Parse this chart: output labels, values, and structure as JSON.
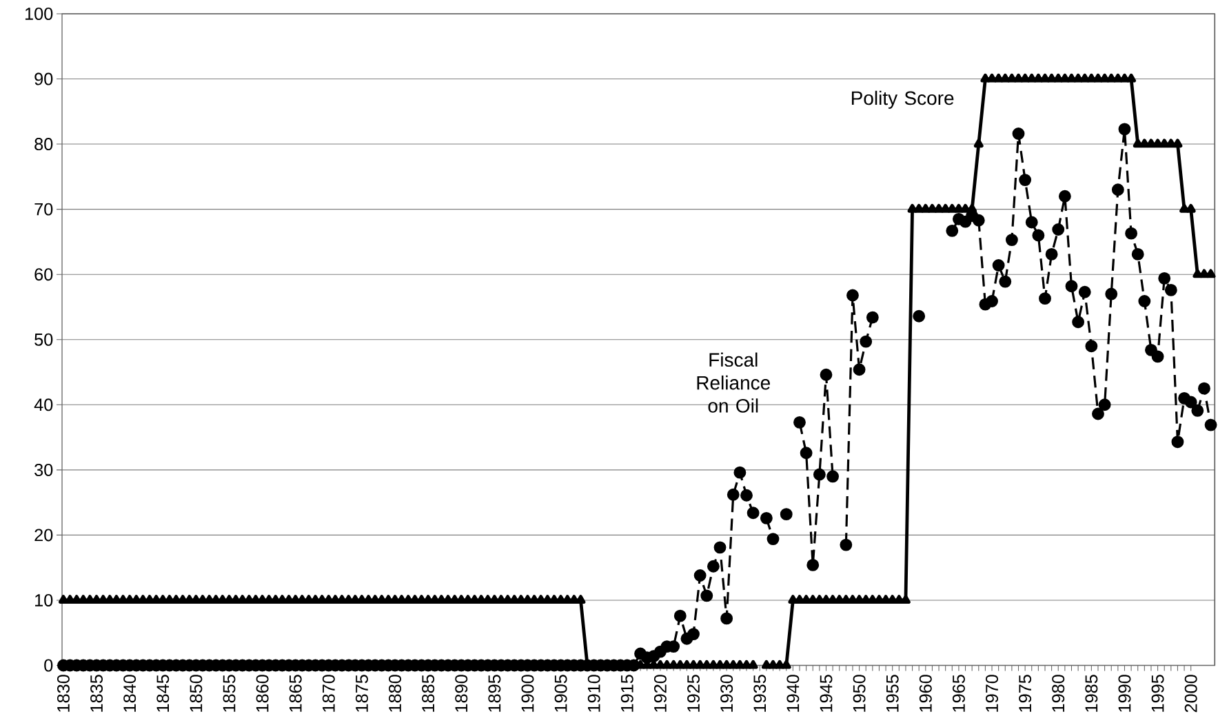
{
  "chart_data": {
    "type": "line",
    "x": [
      1830,
      1831,
      1832,
      1833,
      1834,
      1835,
      1836,
      1837,
      1838,
      1839,
      1840,
      1841,
      1842,
      1843,
      1844,
      1845,
      1846,
      1847,
      1848,
      1849,
      1850,
      1851,
      1852,
      1853,
      1854,
      1855,
      1856,
      1857,
      1858,
      1859,
      1860,
      1861,
      1862,
      1863,
      1864,
      1865,
      1866,
      1867,
      1868,
      1869,
      1870,
      1871,
      1872,
      1873,
      1874,
      1875,
      1876,
      1877,
      1878,
      1879,
      1880,
      1881,
      1882,
      1883,
      1884,
      1885,
      1886,
      1887,
      1888,
      1889,
      1890,
      1891,
      1892,
      1893,
      1894,
      1895,
      1896,
      1897,
      1898,
      1899,
      1900,
      1901,
      1902,
      1903,
      1904,
      1905,
      1906,
      1907,
      1908,
      1909,
      1910,
      1911,
      1912,
      1913,
      1914,
      1915,
      1916,
      1917,
      1918,
      1919,
      1920,
      1921,
      1922,
      1923,
      1924,
      1925,
      1926,
      1927,
      1928,
      1929,
      1930,
      1931,
      1932,
      1933,
      1934,
      1935,
      1936,
      1937,
      1938,
      1939,
      1940,
      1941,
      1942,
      1943,
      1944,
      1945,
      1946,
      1947,
      1948,
      1949,
      1950,
      1951,
      1952,
      1953,
      1954,
      1955,
      1956,
      1957,
      1958,
      1959,
      1960,
      1961,
      1962,
      1963,
      1964,
      1965,
      1966,
      1967,
      1968,
      1969,
      1970,
      1971,
      1972,
      1973,
      1974,
      1975,
      1976,
      1977,
      1978,
      1979,
      1980,
      1981,
      1982,
      1983,
      1984,
      1985,
      1986,
      1987,
      1988,
      1989,
      1990,
      1991,
      1992,
      1993,
      1994,
      1995,
      1996,
      1997,
      1998,
      1999,
      2000,
      2001,
      2002,
      2003
    ],
    "series": [
      {
        "name": "Polity Score",
        "color": "#000000",
        "marker": "triangle",
        "line_style": "solid",
        "values": [
          10,
          10,
          10,
          10,
          10,
          10,
          10,
          10,
          10,
          10,
          10,
          10,
          10,
          10,
          10,
          10,
          10,
          10,
          10,
          10,
          10,
          10,
          10,
          10,
          10,
          10,
          10,
          10,
          10,
          10,
          10,
          10,
          10,
          10,
          10,
          10,
          10,
          10,
          10,
          10,
          10,
          10,
          10,
          10,
          10,
          10,
          10,
          10,
          10,
          10,
          10,
          10,
          10,
          10,
          10,
          10,
          10,
          10,
          10,
          10,
          10,
          10,
          10,
          10,
          10,
          10,
          10,
          10,
          10,
          10,
          10,
          10,
          10,
          10,
          10,
          10,
          10,
          10,
          10,
          0,
          0,
          0,
          0,
          0,
          0,
          0,
          0,
          0,
          0,
          0,
          0,
          0,
          0,
          0,
          0,
          0,
          0,
          0,
          0,
          0,
          0,
          0,
          0,
          0,
          0,
          null,
          0,
          0,
          0,
          0,
          10,
          10,
          10,
          10,
          10,
          10,
          10,
          10,
          10,
          10,
          10,
          10,
          10,
          10,
          10,
          10,
          10,
          10,
          70,
          70,
          70,
          70,
          70,
          70,
          70,
          70,
          70,
          70,
          80,
          90,
          90,
          90,
          90,
          90,
          90,
          90,
          90,
          90,
          90,
          90,
          90,
          90,
          90,
          90,
          90,
          90,
          90,
          90,
          90,
          90,
          90,
          90,
          80,
          80,
          80,
          80,
          80,
          80,
          80,
          70,
          70,
          60,
          60,
          60
        ]
      },
      {
        "name": "Fiscal Reliance on Oil",
        "color": "#000000",
        "marker": "circle",
        "line_style": "dashed",
        "values": [
          0,
          0,
          0,
          0,
          0,
          0,
          0,
          0,
          0,
          0,
          0,
          0,
          0,
          0,
          0,
          0,
          0,
          0,
          0,
          0,
          0,
          0,
          0,
          0,
          0,
          0,
          0,
          0,
          0,
          0,
          0,
          0,
          0,
          0,
          0,
          0,
          0,
          0,
          0,
          0,
          0,
          0,
          0,
          0,
          0,
          0,
          0,
          0,
          0,
          0,
          0,
          0,
          0,
          0,
          0,
          0,
          0,
          0,
          0,
          0,
          0,
          0,
          0,
          0,
          0,
          0,
          0,
          0,
          0,
          0,
          0,
          0,
          0,
          0,
          0,
          0,
          0,
          0,
          0,
          0,
          0,
          0,
          0,
          0,
          0,
          0,
          0,
          1.8,
          1.2,
          1.4,
          2.1,
          2.9,
          2.9,
          7.6,
          4.1,
          4.8,
          13.8,
          10.7,
          15.2,
          18.1,
          7.2,
          26.2,
          29.6,
          26.1,
          23.4,
          null,
          22.6,
          19.4,
          null,
          23.2,
          null,
          37.3,
          32.6,
          15.4,
          29.3,
          44.6,
          29.0,
          null,
          18.5,
          56.8,
          45.4,
          49.7,
          53.4,
          null,
          null,
          null,
          null,
          null,
          null,
          53.6,
          null,
          null,
          null,
          null,
          66.7,
          68.5,
          68.1,
          69,
          68.3,
          55.4,
          55.9,
          61.4,
          58.9,
          65.3,
          81.6,
          74.5,
          68.0,
          66.0,
          56.3,
          63.1,
          66.9,
          72.0,
          58.2,
          52.7,
          57.3,
          49.0,
          38.6,
          40.0,
          57.0,
          73.0,
          82.3,
          66.3,
          63.1,
          55.9,
          48.4,
          47.4,
          59.4,
          57.6,
          34.3,
          41.0,
          40.4,
          39.1,
          42.5,
          36.9
        ]
      }
    ],
    "xlim": [
      1829.8,
      2003.6
    ],
    "ylim": [
      0,
      100
    ],
    "xticks": [
      1830,
      1835,
      1840,
      1845,
      1850,
      1855,
      1860,
      1865,
      1870,
      1875,
      1880,
      1885,
      1890,
      1895,
      1900,
      1905,
      1910,
      1915,
      1920,
      1925,
      1930,
      1935,
      1940,
      1945,
      1950,
      1955,
      1960,
      1965,
      1970,
      1975,
      1980,
      1985,
      1990,
      1995,
      2000
    ],
    "yticks": [
      0,
      10,
      20,
      30,
      40,
      50,
      60,
      70,
      80,
      90,
      100
    ],
    "grid": "y"
  }
}
